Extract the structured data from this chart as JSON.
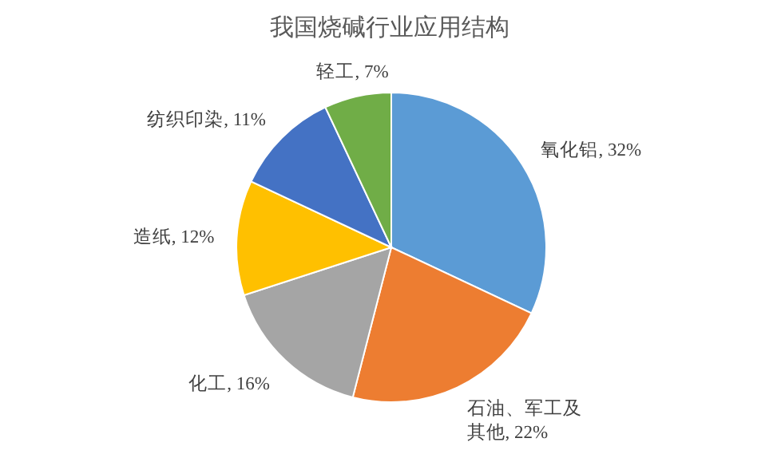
{
  "chart_data": {
    "type": "pie",
    "title": "我国烧碱行业应用结构",
    "categories": [
      "氧化铝",
      "石油、军工及其他",
      "化工",
      "造纸",
      "纺织印染",
      "轻工"
    ],
    "values": [
      32,
      22,
      16,
      12,
      11,
      7
    ],
    "value_labels": [
      "32%",
      "22%",
      "16%",
      "12%",
      "11%",
      "7%"
    ],
    "colors": [
      "#5b9bd5",
      "#ed7d31",
      "#a5a5a5",
      "#ffc000",
      "#4472c4",
      "#70ad47"
    ]
  }
}
